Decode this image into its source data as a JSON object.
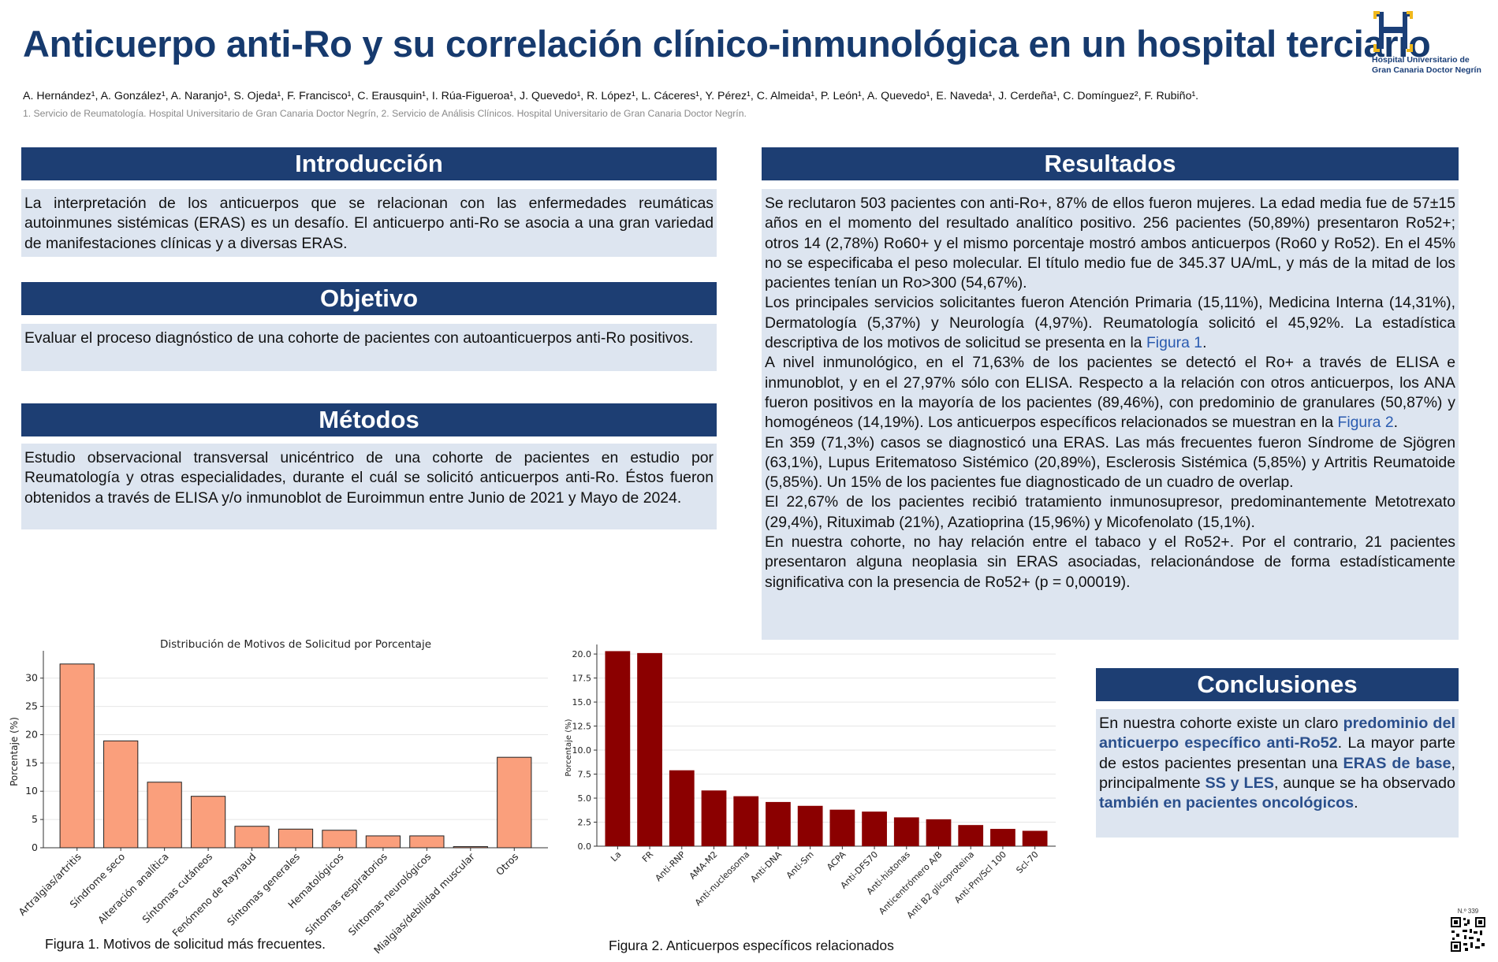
{
  "header": {
    "title": "Anticuerpo anti-Ro y su correlación clínico-inmunológica en un hospital terciario",
    "authors": "A. Hernández¹, A. González¹, A. Naranjo¹, S. Ojeda¹, F. Francisco¹, C. Erausquin¹, I. Rúa-Figueroa¹, J. Quevedo¹, R. López¹, L. Cáceres¹, Y. Pérez¹, C. Almeida¹, P. León¹, A. Quevedo¹, E. Naveda¹, J. Cerdeña¹, C. Domínguez², F. Rubiño¹.",
    "affiliations": "1. Servicio de Reumatología. Hospital Universitario de Gran Canaria Doctor Negrín, 2. Servicio de Análisis Clínicos. Hospital Universitario de Gran Canaria Doctor Negrín."
  },
  "logo": {
    "line1": "Hospital Universitario de",
    "line2": "Gran Canaria ",
    "line2_bold": "Doctor Negrín",
    "colors": {
      "blue": "#1b3f78",
      "gold": "#f0b81c"
    }
  },
  "intro": {
    "heading": "Introducción",
    "text": "La interpretación de los anticuerpos que se relacionan con las enfermedades reumáticas autoinmunes sistémicas (ERAS) es un desafío. El anticuerpo anti-Ro se asocia a una gran variedad de manifestaciones clínicas y a diversas ERAS."
  },
  "objective": {
    "heading": "Objetivo",
    "text": "Evaluar el proceso diagnóstico de una cohorte de pacientes con autoanticuerpos anti-Ro positivos."
  },
  "methods": {
    "heading": "Métodos",
    "text": "Estudio observacional transversal unicéntrico de una cohorte de pacientes en estudio por Reumatología y otras especialidades, durante el cuál se solicitó anticuerpos anti-Ro. Éstos fueron obtenidos a través de ELISA y/o inmunoblot de Euroimmun entre Junio de 2021 y Mayo de 2024."
  },
  "results": {
    "heading": "Resultados",
    "p1": "Se reclutaron 503 pacientes con anti-Ro+, 87% de ellos fueron mujeres. La edad media fue de 57±15 años en el momento del resultado analítico positivo.  256 pacientes (50,89%) presentaron Ro52+; otros 14 (2,78%) Ro60+ y el mismo porcentaje mostró ambos anticuerpos (Ro60 y Ro52). En el 45% no se especificaba el peso molecular. El título medio fue de 345.37 UA/mL, y más de la mitad de los pacientes tenían un Ro>300 (54,67%).",
    "p2a": "Los principales servicios solicitantes fueron Atención Primaria (15,11%), Medicina Interna (14,31%), Dermatología (5,37%) y Neurología (4,97%). Reumatología solicitó el 45,92%. La estadística descriptiva de los motivos de solicitud se presenta en la ",
    "p2_link": "Figura 1",
    "p2b": ".",
    "p3a": "A nivel inmunológico, en el 71,63% de los pacientes se detectó el Ro+ a través de ELISA e inmunoblot, y en el 27,97% sólo con ELISA. Respecto a la relación con otros anticuerpos, los ANA fueron positivos en la mayoría de los pacientes (89,46%), con predominio de granulares (50,87%) y homogéneos (14,19%). Los anticuerpos específicos relacionados se muestran en la ",
    "p3_link": "Figura 2",
    "p3b": ".",
    "p4": "En 359 (71,3%) casos se diagnosticó una ERAS. Las más frecuentes fueron Síndrome de Sjögren (63,1%), Lupus Eritematoso Sistémico (20,89%), Esclerosis Sistémica (5,85%) y Artritis Reumatoide (5,85%). Un 15% de los pacientes fue diagnosticado de un cuadro de overlap.",
    "p5": "El 22,67% de los pacientes recibió tratamiento inmunosupresor, predominantemente Metotrexato (29,4%), Rituximab (21%), Azatioprina (15,96%) y Micofenolato (15,1%).",
    "p6": "En nuestra cohorte, no hay relación entre el tabaco y el Ro52+. Por el contrario, 21 pacientes presentaron alguna neoplasia sin ERAS asociadas, relacionándose de forma estadísticamente significativa con la presencia de Ro52+ (p = 0,00019)."
  },
  "conclusions": {
    "heading": "Conclusiones",
    "t1": "En nuestra cohorte existe un claro ",
    "h1": "predominio del anticuerpo específico anti-Ro52",
    "t2": ". La mayor parte de estos pacientes presentan una ",
    "h2": "ERAS de base",
    "t3": ", principalmente ",
    "h3": "SS y LES",
    "t4": ", aunque se ha observado ",
    "h4": "también en pacientes oncológicos",
    "t5": "."
  },
  "figures": {
    "fig1_caption": "Figura 1. Motivos de solicitud más frecuentes.",
    "fig2_caption": "Figura 2. Anticuerpos específicos relacionados"
  },
  "poster_number": "N.º 339",
  "chart_data": [
    {
      "type": "bar",
      "title": "Distribución de Motivos de Solicitud por Porcentaje",
      "xlabel": "",
      "ylabel": "Porcentaje (%)",
      "ylim": [
        0,
        34
      ],
      "yticks": [
        0,
        5,
        10,
        15,
        20,
        25,
        30
      ],
      "grid": true,
      "color": "#fa9f7c",
      "categories": [
        "Artralgias/artritis",
        "Síndrome seco",
        "Alteración analítica",
        "Síntomas cutáneos",
        "Fenómeno de Raynaud",
        "Síntomas generales",
        "Hematológicos",
        "Síntomas respiratorios",
        "Síntomas neurológicos",
        "Mialgias/debilidad muscular",
        "Otros"
      ],
      "values": [
        32.5,
        18.9,
        11.6,
        9.1,
        3.8,
        3.3,
        3.1,
        2.1,
        2.1,
        0.2,
        16.0
      ]
    },
    {
      "type": "bar",
      "title": "",
      "xlabel": "",
      "ylabel": "Porcentaje (%)",
      "ylim": [
        0,
        20.5
      ],
      "yticks": [
        0.0,
        2.5,
        5.0,
        7.5,
        10.0,
        12.5,
        15.0,
        17.5,
        20.0
      ],
      "grid": true,
      "color": "#8b0000",
      "categories": [
        "La",
        "FR",
        "Anti-RNP",
        "AMA-M2",
        "Anti-nucleosoma",
        "Anti-DNA",
        "Anti-Sm",
        "ACPA",
        "Anti-DFS70",
        "Anti-histonas",
        "Anticentrómero A/B",
        "Anti B2 glicoproteina",
        "Anti-Pm/Scl 100",
        "Scl-70"
      ],
      "values": [
        20.3,
        20.1,
        7.9,
        5.8,
        5.2,
        4.6,
        4.2,
        3.8,
        3.6,
        3.0,
        2.8,
        2.2,
        1.8,
        1.6
      ]
    }
  ]
}
